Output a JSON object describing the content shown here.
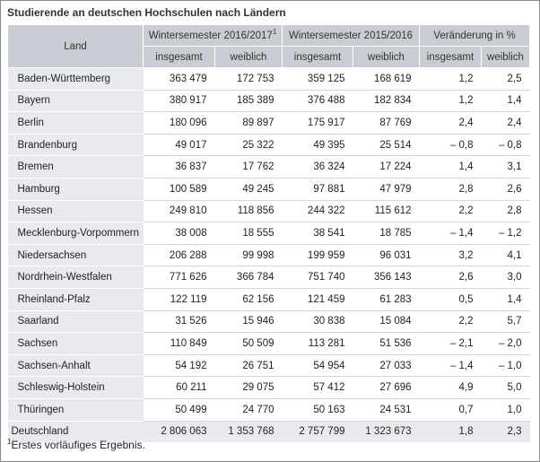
{
  "title": "Studierende an deutschen Hochschulen nach Ländern",
  "headers": {
    "land": "Land",
    "ws_2016": "Wintersemester 2016/2017",
    "ws_2016_sup": "1",
    "ws_2015": "Wintersemester 2015/2016",
    "change": "Veränderung in %",
    "insgesamt": "insgesamt",
    "weiblich": "weiblich"
  },
  "rows": [
    {
      "land": "Baden-Württemberg",
      "v": [
        "363 479",
        "172 753",
        "359 125",
        "168 619",
        "1,2",
        "2,5"
      ]
    },
    {
      "land": "Bayern",
      "v": [
        "380 917",
        "185 389",
        "376 488",
        "182 834",
        "1,2",
        "1,4"
      ]
    },
    {
      "land": "Berlin",
      "v": [
        "180 096",
        "89 897",
        "175 917",
        "87 769",
        "2,4",
        "2,4"
      ]
    },
    {
      "land": "Brandenburg",
      "v": [
        "49 017",
        "25 322",
        "49 395",
        "25 514",
        "– 0,8",
        "– 0,8"
      ]
    },
    {
      "land": "Bremen",
      "v": [
        "36 837",
        "17 762",
        "36 324",
        "17 224",
        "1,4",
        "3,1"
      ]
    },
    {
      "land": "Hamburg",
      "v": [
        "100 589",
        "49 245",
        "97 881",
        "47 979",
        "2,8",
        "2,6"
      ]
    },
    {
      "land": "Hessen",
      "v": [
        "249 810",
        "118 856",
        "244 322",
        "115 612",
        "2,2",
        "2,8"
      ]
    },
    {
      "land": "Mecklenburg-Vorpommern",
      "v": [
        "38 008",
        "18 555",
        "38 541",
        "18 785",
        "– 1,4",
        "– 1,2"
      ]
    },
    {
      "land": "Niedersachsen",
      "v": [
        "206 288",
        "99 998",
        "199 959",
        "96 031",
        "3,2",
        "4,1"
      ]
    },
    {
      "land": "Nordrhein-Westfalen",
      "v": [
        "771 626",
        "366 784",
        "751 740",
        "356 143",
        "2,6",
        "3,0"
      ]
    },
    {
      "land": "Rheinland-Pfalz",
      "v": [
        "122 119",
        "62 156",
        "121 459",
        "61 283",
        "0,5",
        "1,4"
      ]
    },
    {
      "land": "Saarland",
      "v": [
        "31 526",
        "15 946",
        "30 838",
        "15 084",
        "2,2",
        "5,7"
      ]
    },
    {
      "land": "Sachsen",
      "v": [
        "110 849",
        "50 509",
        "113 281",
        "51 536",
        "– 2,1",
        "– 2,0"
      ]
    },
    {
      "land": "Sachsen-Anhalt",
      "v": [
        "54 192",
        "26 751",
        "54 954",
        "27 033",
        "– 1,4",
        "– 1,0"
      ]
    },
    {
      "land": "Schleswig-Holstein",
      "v": [
        "60 211",
        "29 075",
        "57 412",
        "27 696",
        "4,9",
        "5,0"
      ]
    },
    {
      "land": "Thüringen",
      "v": [
        "50 499",
        "24 770",
        "50 163",
        "24 531",
        "0,7",
        "1,0"
      ]
    }
  ],
  "total": {
    "land": "Deutschland",
    "v": [
      "2 806 063",
      "1 353 768",
      "2 757 799",
      "1 323 673",
      "1,8",
      "2,3"
    ]
  },
  "footnote": {
    "mark": "1",
    "text": "Erstes vorläufiges Ergebnis."
  }
}
